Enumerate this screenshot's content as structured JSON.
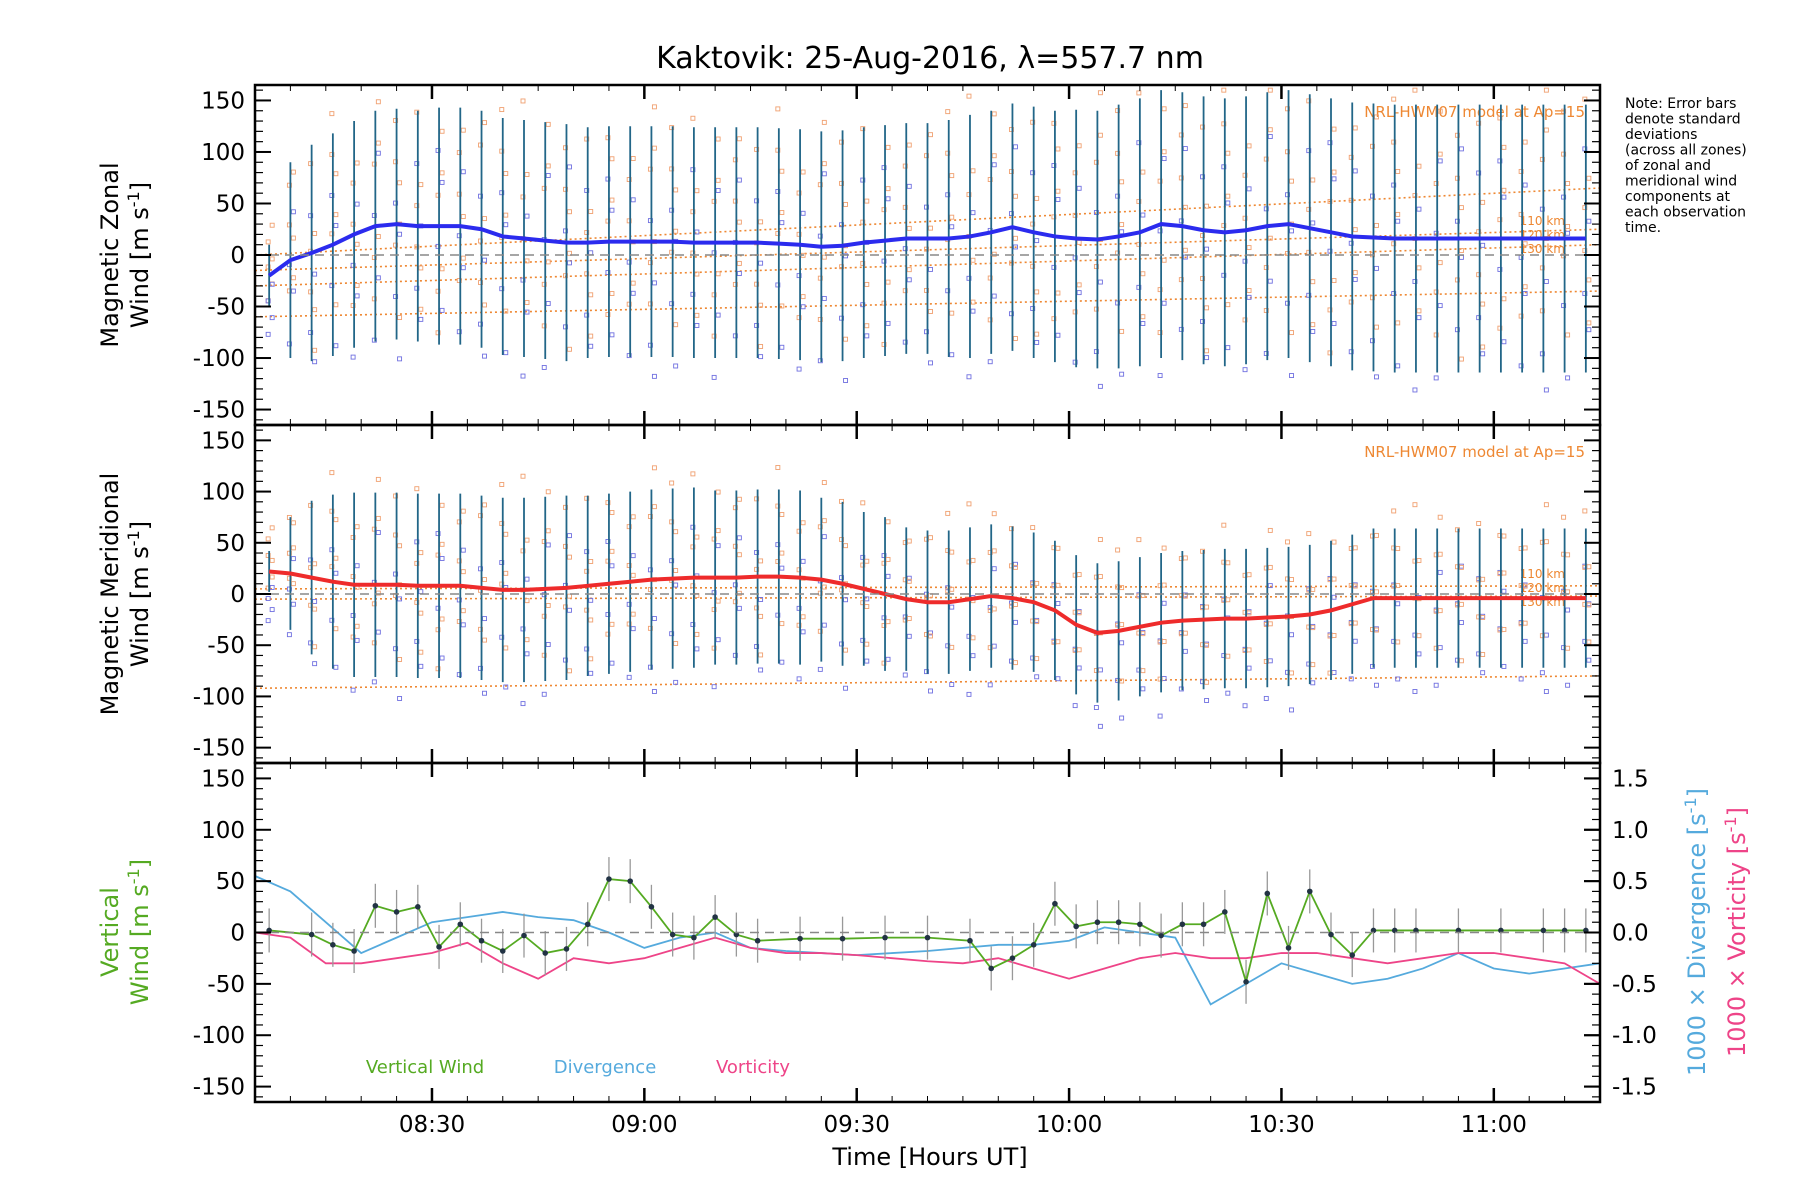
{
  "colors": {
    "zonal": "#2b2bee",
    "meridional": "#ee2b2b",
    "vertical": "#55aa22",
    "divergence": "#55aadd",
    "vorticity": "#ee4488",
    "model": "#ee8833",
    "errorbar": "#226688",
    "scatter_orange": "#f0a070",
    "scatter_blue": "#7070e0",
    "zero_line": "#888888",
    "axis": "#000000"
  },
  "title": "Kaktovik: 25-Aug-2016, λ=557.7 nm",
  "note": [
    "Note: Error bars",
    "denote standard",
    "deviations",
    "(across all zones)",
    "of zonal and",
    "meridional wind",
    "components at",
    "each observation",
    "time."
  ],
  "panels": {
    "zonal": {
      "ylabel_line1": "Magnetic Zonal",
      "ylabel_line2": "Wind [m s",
      "ylabel_sup": "-1",
      "ylabel_end": "]",
      "model_label": "NRL-HWM07 model at Ap=15",
      "alt_labels": [
        "110 km",
        "120 km",
        "130 km"
      ]
    },
    "meridional": {
      "ylabel_line1": "Magnetic Meridional",
      "ylabel_line2": "Wind [m s",
      "ylabel_sup": "-1",
      "ylabel_end": "]",
      "model_label": "NRL-HWM07 model at Ap=15",
      "alt_labels": [
        "110 km",
        "120 km",
        "130 km"
      ]
    },
    "vertical": {
      "ylabel_line1": "Vertical",
      "ylabel_line2": "Wind [m s",
      "ylabel_sup": "-1",
      "ylabel_end": "]",
      "right_label1": "1000 × Divergence [s",
      "right_label2": "1000 × Vorticity [s",
      "right_sup": "-1",
      "right_end": "]"
    }
  },
  "legend": {
    "vertical": "Vertical Wind",
    "divergence": "Divergence",
    "vorticity": "Vorticity"
  },
  "xlabel": "Time [Hours UT]",
  "chart_data": {
    "type": "line",
    "title": "Kaktovik: 25-Aug-2016, λ=557.7 nm",
    "xlabel": "Time [Hours UT]",
    "xlim": [
      "08:05",
      "11:15"
    ],
    "x_ticks": [
      "08:30",
      "09:00",
      "09:30",
      "10:00",
      "10:30",
      "11:00"
    ],
    "left_ylim": [
      -165,
      165
    ],
    "left_yticks": [
      150,
      100,
      50,
      0,
      -50,
      -100,
      -150
    ],
    "right_ylim": [
      -1.65,
      1.65
    ],
    "right_yticks": [
      "1.5",
      "1.0",
      "0.5",
      "0.0",
      "-0.5",
      "-1.0",
      "-1.5"
    ],
    "obs_times": [
      "08:07",
      "08:10",
      "08:13",
      "08:16",
      "08:19",
      "08:22",
      "08:25",
      "08:28",
      "08:31",
      "08:34",
      "08:37",
      "08:40",
      "08:43",
      "08:46",
      "08:49",
      "08:52",
      "08:55",
      "08:58",
      "09:01",
      "09:04",
      "09:07",
      "09:10",
      "09:13",
      "09:16",
      "09:19",
      "09:22",
      "09:25",
      "09:28",
      "09:31",
      "09:34",
      "09:37",
      "09:40",
      "09:43",
      "09:46",
      "09:49",
      "09:52",
      "09:55",
      "09:58",
      "10:01",
      "10:04",
      "10:07",
      "10:10",
      "10:13",
      "10:16",
      "10:19",
      "10:22",
      "10:25",
      "10:28",
      "10:31",
      "10:34",
      "10:37",
      "10:40",
      "10:43",
      "10:46",
      "10:49",
      "10:52",
      "10:55",
      "10:58",
      "11:01",
      "11:04",
      "11:07",
      "11:10",
      "11:13"
    ],
    "zonal_wind": [
      -20,
      -5,
      2,
      10,
      20,
      28,
      30,
      28,
      28,
      28,
      25,
      18,
      16,
      14,
      12,
      12,
      13,
      13,
      13,
      13,
      12,
      12,
      12,
      12,
      11,
      10,
      8,
      9,
      12,
      14,
      16,
      16,
      16,
      18,
      22,
      27,
      22,
      18,
      16,
      15,
      18,
      22,
      30,
      28,
      24,
      22,
      24,
      28,
      30,
      26,
      22,
      18,
      17,
      16,
      16,
      16,
      16,
      16,
      16,
      16,
      16,
      16,
      16
    ],
    "zonal_err": [
      30,
      95,
      105,
      108,
      110,
      112,
      112,
      112,
      115,
      115,
      115,
      115,
      115,
      115,
      115,
      112,
      112,
      112,
      112,
      112,
      112,
      112,
      112,
      112,
      112,
      112,
      112,
      112,
      112,
      112,
      112,
      112,
      115,
      118,
      118,
      120,
      122,
      122,
      125,
      125,
      128,
      130,
      130,
      130,
      130,
      130,
      130,
      130,
      130,
      130,
      130,
      130,
      130,
      130,
      130,
      130,
      130,
      130,
      130,
      130,
      130,
      130,
      130
    ],
    "meridional_wind": [
      22,
      20,
      16,
      12,
      9,
      9,
      9,
      8,
      8,
      8,
      6,
      4,
      4,
      5,
      6,
      8,
      10,
      12,
      14,
      15,
      16,
      16,
      16,
      17,
      17,
      16,
      14,
      10,
      5,
      0,
      -5,
      -8,
      -8,
      -5,
      -2,
      -4,
      -8,
      -16,
      -30,
      -38,
      -36,
      -32,
      -28,
      -26,
      -25,
      -24,
      -24,
      -23,
      -22,
      -20,
      -16,
      -10,
      -4,
      -4,
      -4,
      -4,
      -4,
      -4,
      -4,
      -4,
      -4,
      -4,
      -4
    ],
    "meridional_err": [
      20,
      55,
      75,
      85,
      90,
      90,
      90,
      90,
      90,
      90,
      90,
      90,
      90,
      90,
      90,
      88,
      88,
      88,
      88,
      88,
      88,
      85,
      85,
      85,
      85,
      85,
      80,
      80,
      75,
      75,
      70,
      70,
      70,
      70,
      70,
      70,
      68,
      68,
      68,
      68,
      68,
      68,
      68,
      68,
      68,
      68,
      68,
      68,
      68,
      68,
      68,
      68,
      68,
      68,
      68,
      68,
      68,
      68,
      68,
      68,
      68,
      68,
      68
    ],
    "vertical_times": [
      "08:07",
      "08:13",
      "08:16",
      "08:19",
      "08:22",
      "08:25",
      "08:28",
      "08:31",
      "08:34",
      "08:37",
      "08:40",
      "08:43",
      "08:46",
      "08:49",
      "08:52",
      "08:55",
      "08:58",
      "09:01",
      "09:04",
      "09:07",
      "09:10",
      "09:13",
      "09:16",
      "09:22",
      "09:28",
      "09:34",
      "09:40",
      "09:46",
      "09:49",
      "09:52",
      "09:55",
      "09:58",
      "10:01",
      "10:04",
      "10:07",
      "10:10",
      "10:13",
      "10:16",
      "10:19",
      "10:22",
      "10:25",
      "10:28",
      "10:31",
      "10:34",
      "10:37",
      "10:40",
      "10:43",
      "10:46",
      "10:49",
      "10:55",
      "11:01",
      "11:07",
      "11:10",
      "11:13"
    ],
    "vertical_wind": [
      2,
      -2,
      -12,
      -18,
      26,
      20,
      25,
      -14,
      8,
      -8,
      -18,
      -3,
      -20,
      -16,
      8,
      52,
      50,
      25,
      -2,
      -5,
      15,
      -2,
      -8,
      -6,
      -6,
      -5,
      -5,
      -8,
      -35,
      -25,
      -12,
      28,
      6,
      10,
      10,
      8,
      -3,
      8,
      8,
      20,
      -48,
      38,
      -15,
      40,
      -2,
      -22,
      2,
      2,
      2,
      2,
      2,
      2,
      2,
      2
    ],
    "divergence_x": [
      "08:05",
      "08:10",
      "08:15",
      "08:20",
      "08:25",
      "08:30",
      "08:35",
      "08:40",
      "08:45",
      "08:50",
      "08:55",
      "09:00",
      "09:05",
      "09:10",
      "09:15",
      "09:20",
      "09:25",
      "09:30",
      "09:35",
      "09:40",
      "09:45",
      "09:50",
      "09:55",
      "10:00",
      "10:05",
      "10:10",
      "10:15",
      "10:20",
      "10:25",
      "10:30",
      "10:35",
      "10:40",
      "10:45",
      "10:50",
      "10:55",
      "11:00",
      "11:05",
      "11:10",
      "11:15"
    ],
    "divergence": [
      0.55,
      0.4,
      0.1,
      -0.2,
      -0.05,
      0.1,
      0.15,
      0.2,
      0.15,
      0.12,
      0.0,
      -0.15,
      -0.05,
      0.0,
      -0.15,
      -0.18,
      -0.2,
      -0.22,
      -0.2,
      -0.18,
      -0.15,
      -0.12,
      -0.12,
      -0.08,
      0.05,
      0.0,
      -0.05,
      -0.7,
      -0.5,
      -0.3,
      -0.4,
      -0.5,
      -0.45,
      -0.35,
      -0.2,
      -0.35,
      -0.4,
      -0.35,
      -0.3
    ],
    "vorticity": [
      0.0,
      -0.05,
      -0.3,
      -0.3,
      -0.25,
      -0.2,
      -0.1,
      -0.3,
      -0.45,
      -0.25,
      -0.3,
      -0.25,
      -0.15,
      -0.05,
      -0.15,
      -0.2,
      -0.2,
      -0.22,
      -0.25,
      -0.28,
      -0.3,
      -0.25,
      -0.35,
      -0.45,
      -0.35,
      -0.25,
      -0.2,
      -0.25,
      -0.25,
      -0.2,
      -0.2,
      -0.25,
      -0.3,
      -0.25,
      -0.2,
      -0.2,
      -0.25,
      -0.3,
      -0.5
    ],
    "model_curves": [
      {
        "panel": "zonal",
        "label": "110 km",
        "x": [
          "08:05",
          "11:15"
        ],
        "y": [
          -15,
          25
        ]
      },
      {
        "panel": "zonal",
        "label": "120 km",
        "x": [
          "08:05",
          "11:15"
        ],
        "y": [
          -30,
          10
        ]
      },
      {
        "panel": "zonal",
        "label": "130 km",
        "x": [
          "08:05",
          "11:15"
        ],
        "y": [
          -60,
          -35
        ]
      },
      {
        "panel": "zonal",
        "label": "",
        "x": [
          "08:05",
          "11:15"
        ],
        "y": [
          0,
          65
        ]
      },
      {
        "panel": "meridional",
        "label": "110 km",
        "x": [
          "08:05",
          "11:15"
        ],
        "y": [
          5,
          8
        ]
      },
      {
        "panel": "meridional",
        "label": "120 km",
        "x": [
          "08:05",
          "11:15"
        ],
        "y": [
          -5,
          -2
        ]
      },
      {
        "panel": "meridional",
        "label": "130 km",
        "x": [
          "08:05",
          "11:15"
        ],
        "y": [
          -92,
          -80
        ]
      }
    ]
  }
}
